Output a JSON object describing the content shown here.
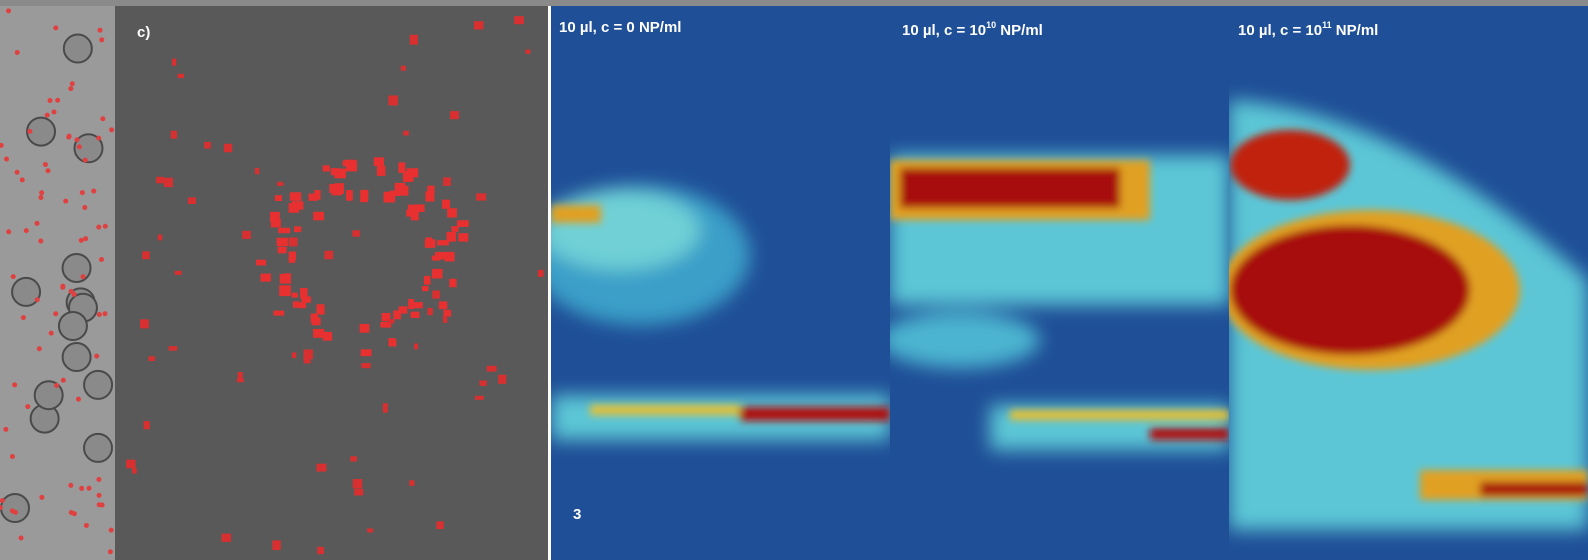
{
  "panel_label": "c)",
  "figure_number": "3",
  "panels": [
    {
      "text": "10 µl, c = 0 NP/ml"
    },
    {
      "text": "10 µl, c = 10",
      "sup": "10",
      "suffix": " NP/ml"
    },
    {
      "text": "10 µl, c = 10",
      "sup": "11",
      "suffix": " NP/ml"
    }
  ]
}
